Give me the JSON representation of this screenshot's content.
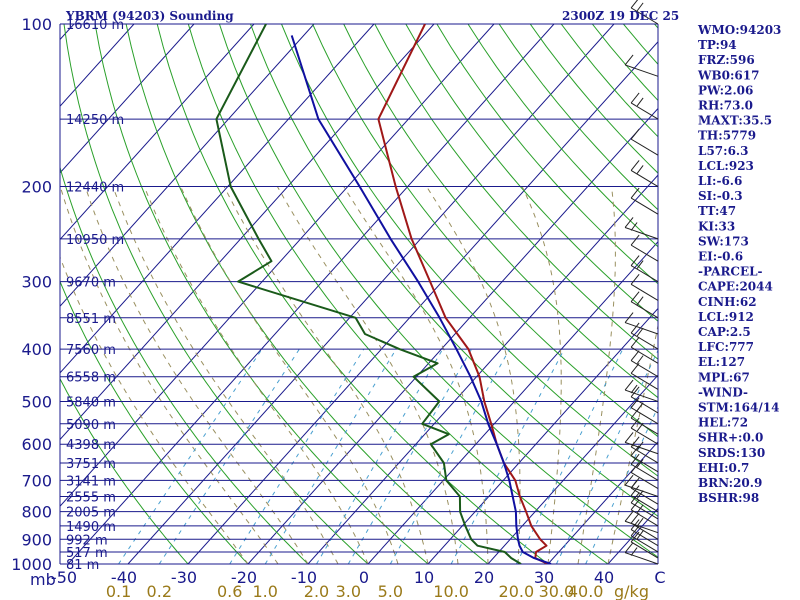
{
  "header": {
    "station": "YBRM (94203) Sounding",
    "time": "2300Z 19 DEC 25"
  },
  "indices": [
    "WMO:94203",
    "TP:94",
    "FRZ:596",
    "WB0:617",
    "PW:2.06",
    "RH:73.0",
    "MAXT:35.5",
    "TH:5779",
    "L57:6.3",
    "LCL:923",
    "LI:-6.6",
    "SI:-0.3",
    "TT:47",
    "KI:33",
    "SW:173",
    "EI:-0.6",
    "-PARCEL-",
    "CAPE:2044",
    "CINH:62",
    "LCL:912",
    "CAP:2.5",
    "LFC:777",
    "EL:127",
    "MPL:67",
    "-WIND-",
    "STM:164/14",
    "HEL:72",
    "SHR+:0.0",
    "SRDS:130",
    "EHI:0.7",
    "BRN:20.9",
    "BSHR:98"
  ],
  "colors": {
    "isobar": "#1a1a8c",
    "isotherm": "#1a1a8c",
    "dry_adiabat": "#2aa02a",
    "moist_adiabat": "#9a9060",
    "mixing_ratio": "#4aa0d0",
    "temperature": "#a01818",
    "dewpoint": "#1a5a1a",
    "parcel": "#1010a0",
    "text": "#1a1a8c"
  },
  "axis": {
    "corner_label": "mb",
    "mixing_ratio_unit": "g/kg"
  },
  "chart_data": {
    "type": "line",
    "title": "YBRM (94203) Sounding",
    "xlabel": "",
    "ylabel": "mb",
    "x_range_celsius": [
      -50,
      50
    ],
    "y_range_mb": [
      1000,
      100
    ],
    "pressure_levels": [
      {
        "p": 100,
        "label": "100",
        "height": "16610 m"
      },
      {
        "p": 150,
        "label": "",
        "height": "14250 m"
      },
      {
        "p": 200,
        "label": "200",
        "height": "12440 m"
      },
      {
        "p": 250,
        "label": "",
        "height": "10950 m"
      },
      {
        "p": 300,
        "label": "300",
        "height": "9670 m"
      },
      {
        "p": 350,
        "label": "",
        "height": "8551 m"
      },
      {
        "p": 400,
        "label": "400",
        "height": "7560 m"
      },
      {
        "p": 450,
        "label": "",
        "height": "6558 m"
      },
      {
        "p": 500,
        "label": "500",
        "height": "5840 m"
      },
      {
        "p": 550,
        "label": "",
        "height": "5090 m"
      },
      {
        "p": 600,
        "label": "600",
        "height": "4398 m"
      },
      {
        "p": 650,
        "label": "",
        "height": "3751 m"
      },
      {
        "p": 700,
        "label": "700",
        "height": "3141 m"
      },
      {
        "p": 750,
        "label": "",
        "height": "2555 m"
      },
      {
        "p": 800,
        "label": "800",
        "height": "2005 m"
      },
      {
        "p": 850,
        "label": "",
        "height": "1490 m"
      },
      {
        "p": 900,
        "label": "900",
        "height": "992 m"
      },
      {
        "p": 950,
        "label": "",
        "height": "517 m"
      },
      {
        "p": 1000,
        "label": "1000",
        "height": "81 m"
      }
    ],
    "temperature_ticks": [
      "-50",
      "-40",
      "-30",
      "-20",
      "-10",
      "0",
      "10",
      "20",
      "30",
      "40",
      "C"
    ],
    "mixing_ratio_ticks": [
      "0.1",
      "0.2",
      "0.6",
      "1.0",
      "2.0",
      "3.0",
      "5.0",
      "10.0",
      "20.0",
      "30.0",
      "40.0"
    ],
    "mixing_ratio_values": [
      0.1,
      0.2,
      0.6,
      1.0,
      2.0,
      3.0,
      5.0,
      10.0,
      20.0,
      30.0,
      40.0
    ],
    "series": [
      {
        "key": "temperature",
        "points": [
          [
            1000,
            30.0
          ],
          [
            975,
            27.0
          ],
          [
            950,
            26.2
          ],
          [
            925,
            27.0
          ],
          [
            900,
            25.0
          ],
          [
            850,
            21.5
          ],
          [
            800,
            18.5
          ],
          [
            750,
            15.2
          ],
          [
            700,
            12.0
          ],
          [
            650,
            7.5
          ],
          [
            600,
            3.5
          ],
          [
            550,
            -0.5
          ],
          [
            500,
            -5.0
          ],
          [
            450,
            -9.5
          ],
          [
            400,
            -15.5
          ],
          [
            350,
            -24.0
          ],
          [
            300,
            -32.0
          ],
          [
            250,
            -41.5
          ],
          [
            200,
            -52.0
          ],
          [
            150,
            -65.0
          ],
          [
            100,
            -71.5
          ]
        ]
      },
      {
        "key": "dewpoint",
        "points": [
          [
            1000,
            25.5
          ],
          [
            975,
            23.0
          ],
          [
            950,
            21.0
          ],
          [
            925,
            15.5
          ],
          [
            900,
            13.5
          ],
          [
            850,
            10.5
          ],
          [
            800,
            7.5
          ],
          [
            750,
            5.2
          ],
          [
            700,
            0.5
          ],
          [
            650,
            -2.5
          ],
          [
            600,
            -7.5
          ],
          [
            575,
            -6.0
          ],
          [
            550,
            -12.0
          ],
          [
            500,
            -12.5
          ],
          [
            450,
            -20.5
          ],
          [
            425,
            -18.5
          ],
          [
            400,
            -27.0
          ],
          [
            375,
            -35.0
          ],
          [
            350,
            -39.0
          ],
          [
            300,
            -64.0
          ],
          [
            275,
            -61.5
          ],
          [
            250,
            -67.0
          ],
          [
            200,
            -79.5
          ],
          [
            150,
            -92.0
          ],
          [
            100,
            -98.0
          ]
        ]
      },
      {
        "key": "parcel",
        "points": [
          [
            1000,
            30.5
          ],
          [
            975,
            26.8
          ],
          [
            950,
            24.0
          ],
          [
            925,
            22.5
          ],
          [
            900,
            21.3
          ],
          [
            850,
            19.0
          ],
          [
            800,
            16.8
          ],
          [
            750,
            14.0
          ],
          [
            700,
            11.0
          ],
          [
            650,
            7.5
          ],
          [
            600,
            3.5
          ],
          [
            550,
            -1.0
          ],
          [
            500,
            -5.5
          ],
          [
            450,
            -11.0
          ],
          [
            400,
            -17.5
          ],
          [
            350,
            -25.0
          ],
          [
            300,
            -34.0
          ],
          [
            250,
            -45.0
          ],
          [
            200,
            -58.0
          ],
          [
            150,
            -75.0
          ],
          [
            105,
            -92.0
          ]
        ]
      }
    ],
    "grid": true,
    "legend": "none"
  }
}
